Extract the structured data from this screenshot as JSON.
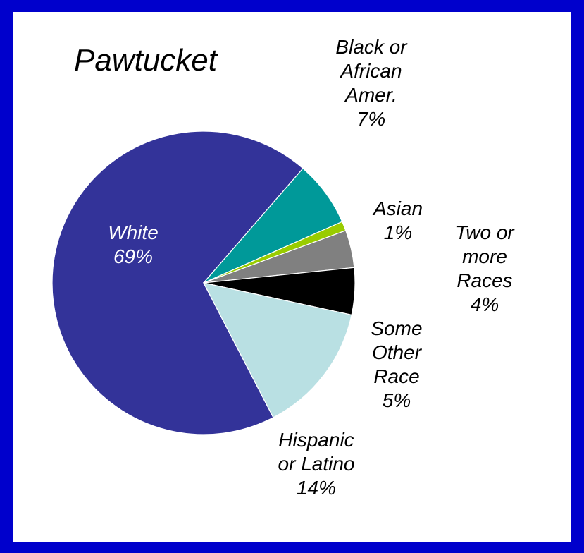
{
  "chart_data": {
    "type": "pie",
    "title": "Pawtucket",
    "slices": [
      {
        "name": "White",
        "value": 69,
        "label_lines": [
          "White",
          "69%"
        ],
        "color": "#333399"
      },
      {
        "name": "Black or African Amer.",
        "value": 7,
        "label_lines": [
          "Black or",
          "African",
          "Amer.",
          "7%"
        ],
        "color": "#009999"
      },
      {
        "name": "Asian",
        "value": 1,
        "label_lines": [
          "Asian",
          "1%"
        ],
        "color": "#99cc00"
      },
      {
        "name": "Two or more Races",
        "value": 4,
        "label_lines": [
          "Two or",
          "more",
          "Races",
          "4%"
        ],
        "color": "#808080"
      },
      {
        "name": "Some Other Race",
        "value": 5,
        "label_lines": [
          "Some",
          "Other",
          "Race",
          "5%"
        ],
        "color": "#000000"
      },
      {
        "name": "Hispanic or Latino",
        "value": 14,
        "label_lines": [
          "Hispanic",
          "or Latino",
          "14%"
        ],
        "color": "#b9e0e3"
      }
    ]
  },
  "colors": {
    "background": "#0000cc",
    "panel": "#ffffff"
  }
}
